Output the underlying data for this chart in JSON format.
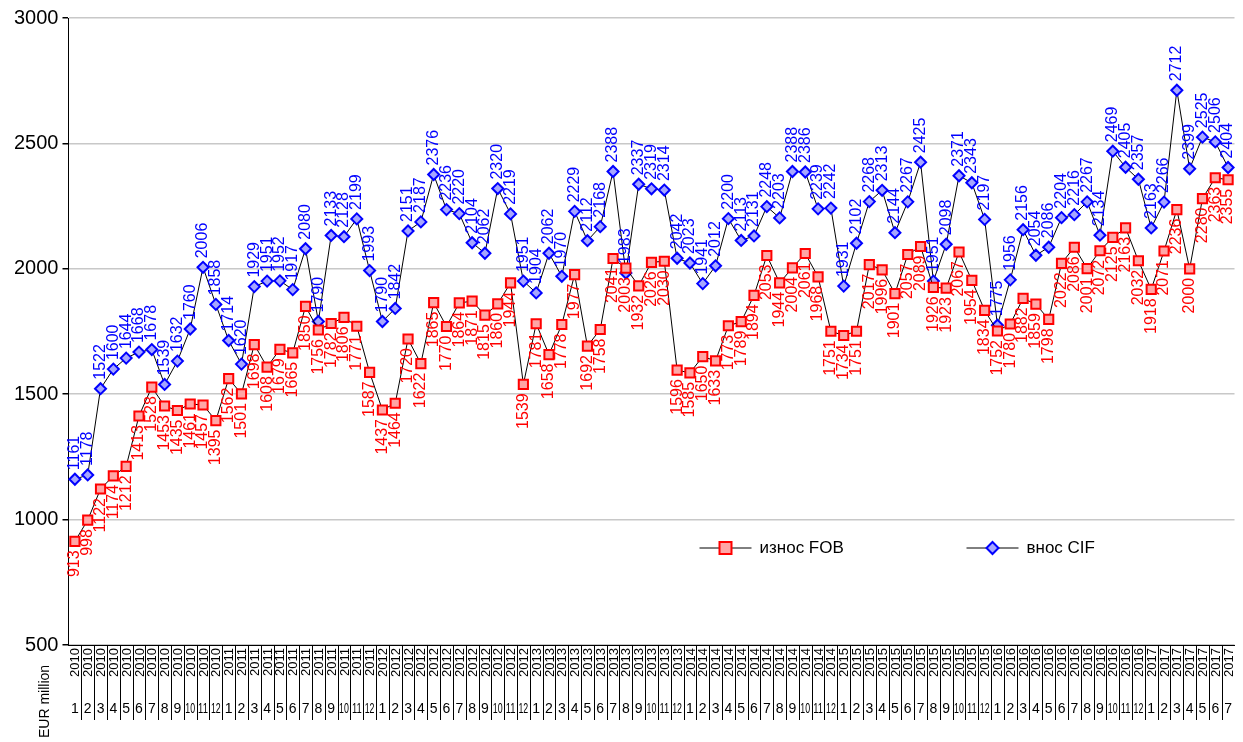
{
  "chart_data": {
    "type": "line",
    "ylabel": "EUR million",
    "categories": [
      "2010 1",
      "2010 2",
      "2010 3",
      "2010 4",
      "2010 5",
      "2010 6",
      "2010 7",
      "2010 8",
      "2010 9",
      "2010 10",
      "2010 11",
      "2010 12",
      "2011 1",
      "2011 2",
      "2011 3",
      "2011 4",
      "2011 5",
      "2011 6",
      "2011 7",
      "2011 8",
      "2011 9",
      "2011 10",
      "2011 11",
      "2011 12",
      "2012 1",
      "2012 2",
      "2012 3",
      "2012 4",
      "2012 5",
      "2012 6",
      "2012 7",
      "2012 8",
      "2012 9",
      "2012 10",
      "2012 11",
      "2012 12",
      "2013 1",
      "2013 2",
      "2013 3",
      "2013 4",
      "2013 5",
      "2013 6",
      "2013 7",
      "2013 8",
      "2013 9",
      "2013 10",
      "2013 11",
      "2013 12",
      "2014 1",
      "2014 2",
      "2014 3",
      "2014 4",
      "2014 5",
      "2014 6",
      "2014 7",
      "2014 8",
      "2014 9",
      "2014 10",
      "2014 11",
      "2014 12",
      "2015 1",
      "2015 2",
      "2015 3",
      "2015 4",
      "2015 5",
      "2015 6",
      "2015 7",
      "2015 8",
      "2015 9",
      "2015 10",
      "2015 11",
      "2015 12",
      "2016 1",
      "2016 2",
      "2016 3",
      "2016 4",
      "2016 5",
      "2016 6",
      "2016 7",
      "2016 8",
      "2016 9",
      "2016 10",
      "2016 11",
      "2016 12",
      "2017 1",
      "2017 2",
      "2017 3",
      "2017 4",
      "2017 5",
      "2017 6",
      "2017 7"
    ],
    "series": [
      {
        "name": "износ FOB",
        "color": "#ff0000",
        "marker": "square",
        "values": [
          913,
          998,
          1122,
          1174,
          1212,
          1413,
          1528,
          1453,
          1435,
          1461,
          1457,
          1395,
          1562,
          1501,
          1698,
          1608,
          1679,
          1665,
          1850,
          1756,
          1782,
          1806,
          1771,
          1587,
          1437,
          1464,
          1720,
          1622,
          1865,
          1770,
          1864,
          1871,
          1815,
          1860,
          1944,
          1539,
          1781,
          1658,
          1778,
          1977,
          1692,
          1758,
          2041,
          2003,
          1932,
          2026,
          2030,
          1596,
          1585,
          1650,
          1633,
          1773,
          1789,
          1894,
          2053,
          1944,
          2004,
          2061,
          1968,
          1751,
          1734,
          1751,
          2017,
          1996,
          1901,
          2057,
          2089,
          1926,
          1923,
          2067,
          1954,
          1834,
          1752,
          1780,
          1882,
          1859,
          1798,
          2022,
          2086,
          2001,
          2072,
          2125,
          2163,
          2032,
          1918,
          2071,
          2236,
          2000,
          2280,
          2363,
          2355
        ]
      },
      {
        "name": "внос CIF",
        "color": "#0000ff",
        "marker": "diamond",
        "values": [
          1161,
          1178,
          1522,
          1600,
          1644,
          1668,
          1678,
          1539,
          1632,
          1760,
          2006,
          1858,
          1714,
          1620,
          1929,
          1951,
          1952,
          1917,
          2080,
          1790,
          2133,
          2128,
          2199,
          1993,
          1790,
          1842,
          2151,
          2187,
          2376,
          2236,
          2220,
          2104,
          2062,
          2320,
          2219,
          1951,
          1904,
          2062,
          1970,
          2229,
          2112,
          2168,
          2388,
          1983,
          2337,
          2319,
          2314,
          2042,
          2023,
          1941,
          2012,
          2200,
          2113,
          2131,
          2248,
          2203,
          2388,
          2386,
          2239,
          2242,
          1931,
          2102,
          2268,
          2313,
          2144,
          2267,
          2425,
          1951,
          2098,
          2371,
          2343,
          2197,
          1775,
          1956,
          2156,
          2054,
          2086,
          2204,
          2216,
          2267,
          2134,
          2469,
          2405,
          2357,
          2163,
          2266,
          2712,
          2399,
          2525,
          2506,
          2404
        ]
      }
    ],
    "ylim": [
      500,
      3000
    ],
    "yticks": [
      500,
      1000,
      1500,
      2000,
      2500,
      3000
    ],
    "grid": "y",
    "legend": "bottom right",
    "data_labels": true
  }
}
